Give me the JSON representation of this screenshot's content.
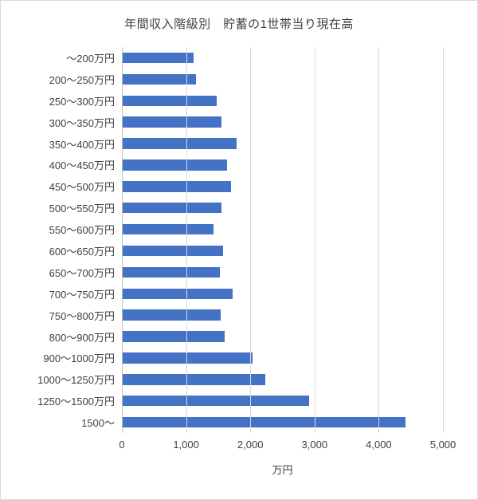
{
  "chart_data": {
    "type": "bar",
    "orientation": "horizontal",
    "title": "年間収入階級別　貯蓄の1世帯当り現在高",
    "xlabel": "万円",
    "ylabel": "",
    "xlim": [
      0,
      5000
    ],
    "x_ticks": [
      "0",
      "1,000",
      "2,000",
      "3,000",
      "4,000",
      "5,000"
    ],
    "grid": true,
    "legend": "none",
    "bar_color": "#4472C4",
    "categories": [
      "～200万円",
      "200～250万円",
      "250～300万円",
      "300～350万円",
      "350～400万円",
      "400～450万円",
      "450～500万円",
      "500～550万円",
      "550～600万円",
      "600～650万円",
      "650～700万円",
      "700～750万円",
      "750～800万円",
      "800～900万円",
      "900～1000万円",
      "1000～1250万円",
      "1250～1500万円",
      "1500～"
    ],
    "values": [
      1120,
      1160,
      1480,
      1550,
      1790,
      1640,
      1700,
      1550,
      1430,
      1580,
      1520,
      1720,
      1540,
      1600,
      2040,
      2230,
      2920,
      4420
    ]
  },
  "colors": {
    "bar": "#4472C4",
    "gridline": "#d9d9d9",
    "axis_line": "#bfbfbf",
    "text": "#404040",
    "background": "#ffffff",
    "border": "#d9d9d9"
  }
}
